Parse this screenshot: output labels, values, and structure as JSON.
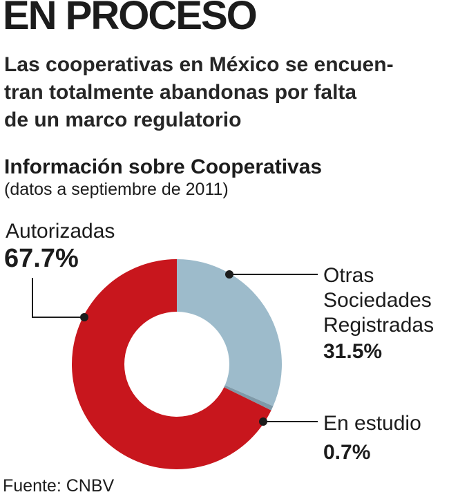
{
  "header": {
    "title": "EN PROCESO",
    "subtitle_lines": [
      "Las cooperativas en México se encuen-",
      "tran totalmente abandonas por falta",
      "de un marco regulatorio"
    ]
  },
  "chart_data": {
    "type": "pie",
    "title": "Información sobre Cooperativas",
    "subtitle": "(datos a septiembre de 2011)",
    "donut": true,
    "slices": [
      {
        "label": "Otras Sociedades Registradas",
        "label_lines": [
          "Otras",
          "Sociedades",
          "Registradas"
        ],
        "value": 31.5,
        "value_label": "31.5%",
        "color": "#9dbbcb"
      },
      {
        "label": "En estudio",
        "label_lines": [
          "En estudio"
        ],
        "value": 0.7,
        "value_label": "0.7%",
        "color": "#7f99a8"
      },
      {
        "label": "Autorizadas",
        "label_lines": [
          "Autorizadas"
        ],
        "value": 67.7,
        "value_label": "67.7%",
        "color": "#c8161d"
      }
    ]
  },
  "footer": {
    "source": "Fuente: CNBV"
  }
}
